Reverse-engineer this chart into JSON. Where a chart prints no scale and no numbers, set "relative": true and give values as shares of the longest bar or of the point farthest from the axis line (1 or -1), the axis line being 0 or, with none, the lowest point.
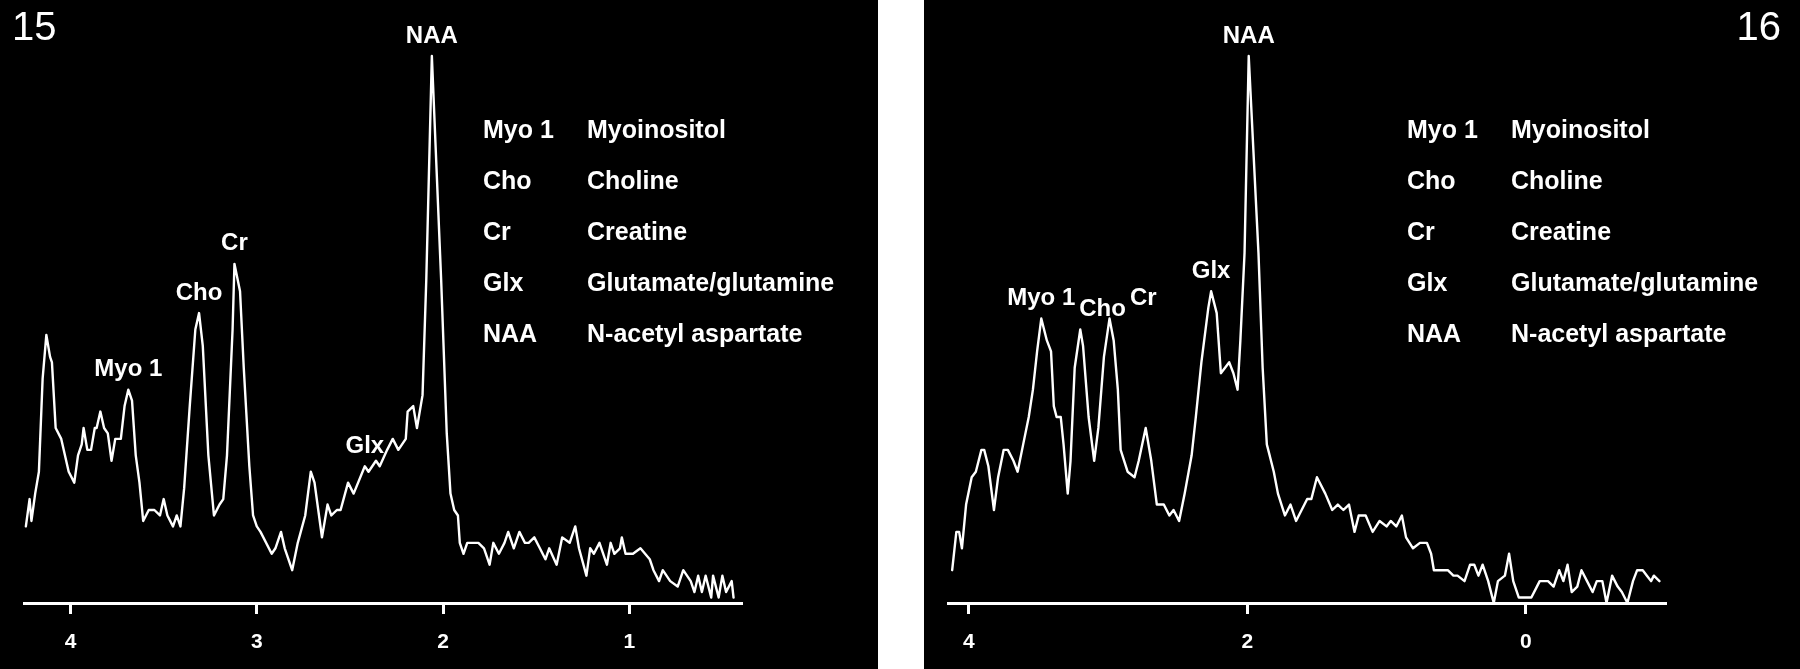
{
  "chart_data": [
    {
      "type": "line",
      "relative": true,
      "xlim": [
        4.25,
        0.4
      ],
      "xticks": [
        4,
        3,
        2,
        1
      ],
      "color": "#ffffff",
      "x": [
        4.24,
        4.22,
        4.21,
        4.19,
        4.17,
        4.15,
        4.13,
        4.11,
        4.1,
        4.08,
        4.05,
        4.01,
        3.98,
        3.96,
        3.94,
        3.93,
        3.91,
        3.89,
        3.87,
        3.86,
        3.84,
        3.82,
        3.8,
        3.78,
        3.76,
        3.73,
        3.71,
        3.69,
        3.67,
        3.65,
        3.63,
        3.61,
        3.58,
        3.55,
        3.52,
        3.5,
        3.48,
        3.45,
        3.43,
        3.41,
        3.39,
        3.36,
        3.33,
        3.31,
        3.29,
        3.26,
        3.23,
        3.2,
        3.18,
        3.16,
        3.13,
        3.12,
        3.09,
        3.07,
        3.04,
        3.02,
        3.0,
        2.98,
        2.92,
        2.9,
        2.87,
        2.85,
        2.81,
        2.78,
        2.74,
        2.71,
        2.69,
        2.67,
        2.65,
        2.62,
        2.6,
        2.57,
        2.55,
        2.51,
        2.48,
        2.42,
        2.4,
        2.36,
        2.34,
        2.3,
        2.27,
        2.24,
        2.2,
        2.19,
        2.16,
        2.14,
        2.11,
        2.09,
        2.06,
        2.01,
        1.98,
        1.96,
        1.94,
        1.92,
        1.91,
        1.89,
        1.87,
        1.84,
        1.81,
        1.78,
        1.75,
        1.73,
        1.7,
        1.67,
        1.65,
        1.62,
        1.59,
        1.56,
        1.54,
        1.51,
        1.48,
        1.45,
        1.43,
        1.39,
        1.36,
        1.32,
        1.29,
        1.27,
        1.23,
        1.21,
        1.19,
        1.16,
        1.12,
        1.1,
        1.08,
        1.05,
        1.04,
        1.02,
        0.98,
        0.94,
        0.89,
        0.87,
        0.84,
        0.82,
        0.78,
        0.74,
        0.71,
        0.67,
        0.65,
        0.63,
        0.61,
        0.59,
        0.56,
        0.55,
        0.52,
        0.5,
        0.48,
        0.45,
        0.44
      ],
      "values": [
        0.14,
        0.19,
        0.15,
        0.2,
        0.24,
        0.41,
        0.49,
        0.45,
        0.44,
        0.32,
        0.3,
        0.24,
        0.22,
        0.27,
        0.29,
        0.32,
        0.28,
        0.28,
        0.32,
        0.32,
        0.35,
        0.32,
        0.31,
        0.26,
        0.3,
        0.3,
        0.36,
        0.39,
        0.37,
        0.27,
        0.22,
        0.15,
        0.17,
        0.17,
        0.16,
        0.19,
        0.16,
        0.14,
        0.16,
        0.14,
        0.21,
        0.36,
        0.5,
        0.53,
        0.47,
        0.27,
        0.16,
        0.18,
        0.19,
        0.27,
        0.5,
        0.62,
        0.57,
        0.43,
        0.25,
        0.16,
        0.14,
        0.13,
        0.09,
        0.1,
        0.13,
        0.1,
        0.06,
        0.11,
        0.16,
        0.24,
        0.22,
        0.17,
        0.12,
        0.18,
        0.16,
        0.17,
        0.17,
        0.22,
        0.2,
        0.25,
        0.24,
        0.26,
        0.25,
        0.28,
        0.3,
        0.28,
        0.3,
        0.35,
        0.36,
        0.32,
        0.38,
        0.59,
        1.0,
        0.59,
        0.31,
        0.2,
        0.17,
        0.16,
        0.11,
        0.09,
        0.11,
        0.11,
        0.11,
        0.1,
        0.07,
        0.11,
        0.09,
        0.11,
        0.13,
        0.1,
        0.13,
        0.11,
        0.11,
        0.12,
        0.1,
        0.08,
        0.1,
        0.07,
        0.12,
        0.11,
        0.14,
        0.1,
        0.05,
        0.1,
        0.09,
        0.11,
        0.07,
        0.11,
        0.09,
        0.1,
        0.12,
        0.09,
        0.09,
        0.1,
        0.08,
        0.06,
        0.04,
        0.06,
        0.04,
        0.03,
        0.06,
        0.04,
        0.02,
        0.05,
        0.02,
        0.05,
        0.01,
        0.05,
        0.01,
        0.05,
        0.02,
        0.04,
        0.01
      ],
      "annotations": [
        "15",
        {
          "text": "Myo 1",
          "x": 3.69,
          "y": 0.39
        },
        {
          "text": "Cho",
          "x": 3.31,
          "y": 0.53
        },
        {
          "text": "Cr",
          "x": 3.12,
          "y": 0.62
        },
        {
          "text": "Glx",
          "x": 2.42,
          "y": 0.25
        },
        {
          "text": "NAA",
          "x": 2.06,
          "y": 1.0
        },
        "Myo 1\tMyoinositol",
        "Cho\tCholine",
        "Cr\tCreatine",
        "Glx\tGlutamate/glutamine",
        "NAA\tN-acetyl aspartate"
      ]
    },
    {
      "type": "line",
      "relative": true,
      "xlim": [
        4.15,
        -1
      ],
      "xticks": [
        4,
        2,
        0
      ],
      "color": "#ffffff",
      "x": [
        4.12,
        4.09,
        4.07,
        4.05,
        4.02,
        3.98,
        3.95,
        3.91,
        3.89,
        3.86,
        3.82,
        3.79,
        3.75,
        3.72,
        3.68,
        3.65,
        3.61,
        3.57,
        3.54,
        3.51,
        3.48,
        3.44,
        3.41,
        3.39,
        3.37,
        3.34,
        3.32,
        3.29,
        3.27,
        3.24,
        3.2,
        3.18,
        3.14,
        3.1,
        3.07,
        3.03,
        2.99,
        2.96,
        2.93,
        2.91,
        2.86,
        2.81,
        2.78,
        2.73,
        2.69,
        2.65,
        2.6,
        2.56,
        2.53,
        2.49,
        2.45,
        2.4,
        2.37,
        2.33,
        2.28,
        2.26,
        2.22,
        2.19,
        2.16,
        2.13,
        2.1,
        2.07,
        2.05,
        2.02,
        1.99,
        1.92,
        1.89,
        1.86,
        1.81,
        1.78,
        1.73,
        1.69,
        1.65,
        1.61,
        1.57,
        1.54,
        1.5,
        1.44,
        1.39,
        1.35,
        1.31,
        1.27,
        1.23,
        1.2,
        1.15,
        1.1,
        1.05,
        1.0,
        0.97,
        0.93,
        0.89,
        0.86,
        0.81,
        0.76,
        0.71,
        0.68,
        0.66,
        0.6,
        0.56,
        0.52,
        0.49,
        0.44,
        0.4,
        0.37,
        0.34,
        0.31,
        0.27,
        0.23,
        0.2,
        0.15,
        0.12,
        0.09,
        0.05,
        0.0,
        -0.04,
        -0.08,
        -0.1,
        -0.13,
        -0.16,
        -0.2,
        -0.24,
        -0.27,
        -0.3,
        -0.33,
        -0.37,
        -0.4,
        -0.44,
        -0.48,
        -0.51,
        -0.55,
        -0.58,
        -0.62,
        -0.66,
        -0.69,
        -0.73,
        -0.77,
        -0.8,
        -0.84,
        -0.87,
        -0.9,
        -0.92,
        -0.96
      ],
      "values": [
        0.06,
        0.13,
        0.13,
        0.1,
        0.18,
        0.23,
        0.24,
        0.28,
        0.28,
        0.25,
        0.17,
        0.23,
        0.28,
        0.28,
        0.26,
        0.24,
        0.29,
        0.34,
        0.39,
        0.46,
        0.52,
        0.48,
        0.46,
        0.36,
        0.34,
        0.34,
        0.29,
        0.2,
        0.26,
        0.43,
        0.5,
        0.47,
        0.34,
        0.26,
        0.32,
        0.45,
        0.52,
        0.48,
        0.39,
        0.28,
        0.24,
        0.23,
        0.26,
        0.32,
        0.26,
        0.18,
        0.18,
        0.16,
        0.17,
        0.15,
        0.2,
        0.27,
        0.34,
        0.44,
        0.54,
        0.57,
        0.53,
        0.42,
        0.43,
        0.44,
        0.42,
        0.39,
        0.48,
        0.64,
        1.0,
        0.64,
        0.43,
        0.29,
        0.24,
        0.2,
        0.16,
        0.18,
        0.15,
        0.17,
        0.19,
        0.19,
        0.23,
        0.2,
        0.17,
        0.18,
        0.17,
        0.18,
        0.13,
        0.16,
        0.16,
        0.13,
        0.15,
        0.14,
        0.15,
        0.14,
        0.16,
        0.12,
        0.1,
        0.11,
        0.11,
        0.09,
        0.06,
        0.06,
        0.06,
        0.05,
        0.05,
        0.04,
        0.07,
        0.07,
        0.05,
        0.07,
        0.04,
        0.0,
        0.04,
        0.05,
        0.09,
        0.04,
        0.01,
        0.01,
        0.01,
        0.03,
        0.04,
        0.04,
        0.04,
        0.03,
        0.06,
        0.04,
        0.07,
        0.02,
        0.03,
        0.06,
        0.04,
        0.02,
        0.04,
        0.04,
        0.0,
        0.05,
        0.03,
        0.02,
        0.0,
        0.04,
        0.06,
        0.06,
        0.05,
        0.04,
        0.05,
        0.04
      ],
      "annotations": [
        "16",
        {
          "text": "Myo 1",
          "x": 3.48,
          "y": 0.52
        },
        {
          "text": "Cho",
          "x": 3.2,
          "y": 0.5
        },
        {
          "text": "Cr",
          "x": 2.99,
          "y": 0.52
        },
        {
          "text": "Glx",
          "x": 2.26,
          "y": 0.57
        },
        {
          "text": "NAA",
          "x": 1.99,
          "y": 1.0
        },
        "Myo 1\tMyoinositol",
        "Cho\tCholine",
        "Cr\tCreatine",
        "Glx\tGlutamate/glutamine",
        "NAA\tN-acetyl aspartate"
      ]
    }
  ]
}
